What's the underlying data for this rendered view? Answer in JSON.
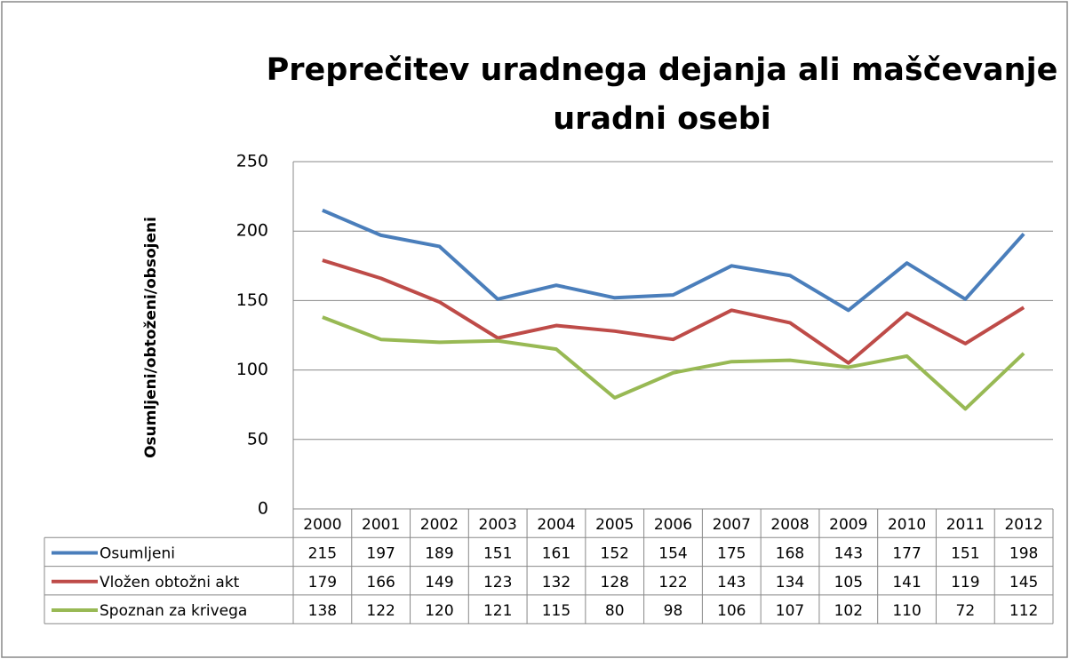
{
  "chart_data": {
    "type": "line",
    "title": [
      "Preprečitev uradnega dejanja ali maščevanje",
      "uradni osebi"
    ],
    "y_label": "Osumljeni/obtoženi/obsojeni",
    "categories": [
      "2000",
      "2001",
      "2002",
      "2003",
      "2004",
      "2005",
      "2006",
      "2007",
      "2008",
      "2009",
      "2010",
      "2011",
      "2012"
    ],
    "series": [
      {
        "name": "Osumljeni",
        "color": "#4a7ebb",
        "values": [
          215,
          197,
          189,
          151,
          161,
          152,
          154,
          175,
          168,
          143,
          177,
          151,
          198
        ]
      },
      {
        "name": "Vložen obtožni akt",
        "color": "#be4b48",
        "values": [
          179,
          166,
          149,
          123,
          132,
          128,
          122,
          143,
          134,
          105,
          141,
          119,
          145
        ]
      },
      {
        "name": "Spoznan za krivega",
        "color": "#98b954",
        "values": [
          138,
          122,
          120,
          121,
          115,
          80,
          98,
          106,
          107,
          102,
          110,
          72,
          112
        ]
      }
    ],
    "ylim": [
      0,
      250
    ],
    "yticks": [
      0,
      50,
      100,
      150,
      200,
      250
    ],
    "grid": true
  }
}
